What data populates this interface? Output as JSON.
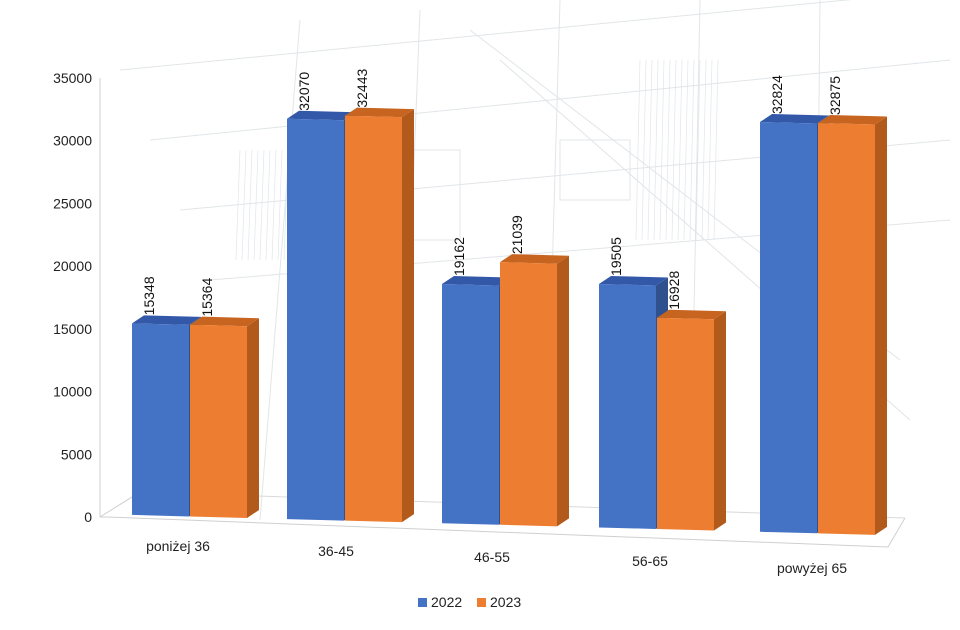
{
  "chart_data": {
    "type": "bar",
    "title": "",
    "xlabel": "",
    "ylabel": "",
    "categories": [
      "poniżej 36",
      "36-45",
      "46-55",
      "56-65",
      "powyżej 65"
    ],
    "series": [
      {
        "name": "2022",
        "values": [
          15348,
          32070,
          19162,
          19505,
          32824
        ],
        "color": "#4472C4",
        "side_color": "#2F528F",
        "top_color": "#3358A8"
      },
      {
        "name": "2023",
        "values": [
          15364,
          32443,
          21039,
          16928,
          32875
        ],
        "color": "#ED7D31",
        "side_color": "#B15A1C",
        "top_color": "#C7641F"
      }
    ],
    "ylim": [
      0,
      35000
    ],
    "yticks": [
      "0",
      "5000",
      "10000",
      "15000",
      "20000",
      "25000",
      "30000",
      "35000"
    ],
    "style": "3d-clustered-column",
    "grid": false,
    "legend_position": "bottom",
    "background": "faint blueprint drawing"
  }
}
